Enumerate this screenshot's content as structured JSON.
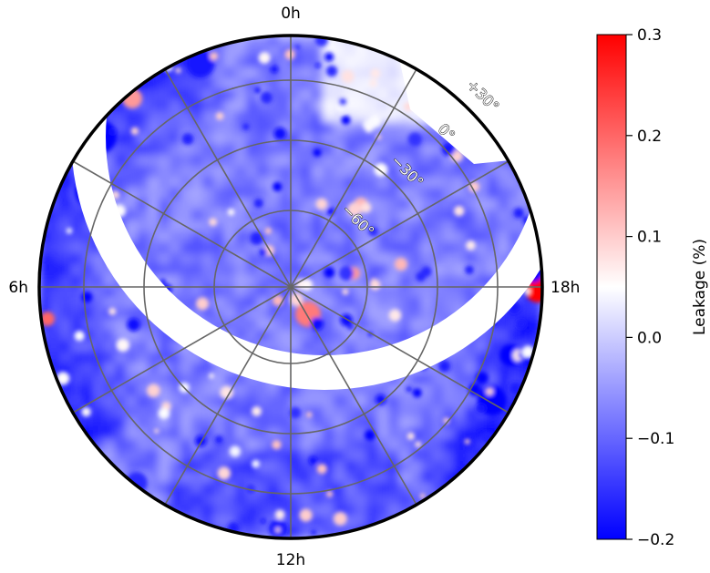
{
  "chart_data": {
    "type": "heatmap",
    "projection": "polar (south celestial pole at centre)",
    "ra_labels": [
      "0h",
      "6h",
      "12h",
      "18h"
    ],
    "dec_labels": [
      "+30°",
      "0°",
      "−30°",
      "−60°"
    ],
    "dec_gridlines": [
      -60,
      -30,
      0,
      30
    ],
    "ra_gridline_count": 12,
    "colorbar": {
      "label": "Leakage (%)",
      "range": [
        -0.2,
        0.3
      ],
      "ticks": [
        "0.3",
        "0.2",
        "0.1",
        "0.0",
        "−0.1",
        "−0.2"
      ],
      "tick_values": [
        0.3,
        0.2,
        0.1,
        0.0,
        -0.1,
        -0.2
      ],
      "colormap": "bwr",
      "min_color": "#0000ff",
      "mid_color": "#ffffff",
      "max_color": "#ff0000",
      "mid_value": 0.05
    },
    "background_leakage": -0.08,
    "hot_spots": [
      {
        "ra_label": "18h",
        "dec": 40,
        "value": 0.3
      },
      {
        "ra_label": "12h (near pole)",
        "dec": -75,
        "value": 0.18
      },
      {
        "ra_label": "6h (edge)",
        "dec": 42,
        "value": 0.2
      }
    ],
    "cold_regions": [
      {
        "ra_label": "5h-2h",
        "dec": 30,
        "value": -0.2
      },
      {
        "ra_label": "16h-14h",
        "dec": 25,
        "value": -0.2
      }
    ],
    "gridlines": true,
    "legend": "colorbar right"
  }
}
